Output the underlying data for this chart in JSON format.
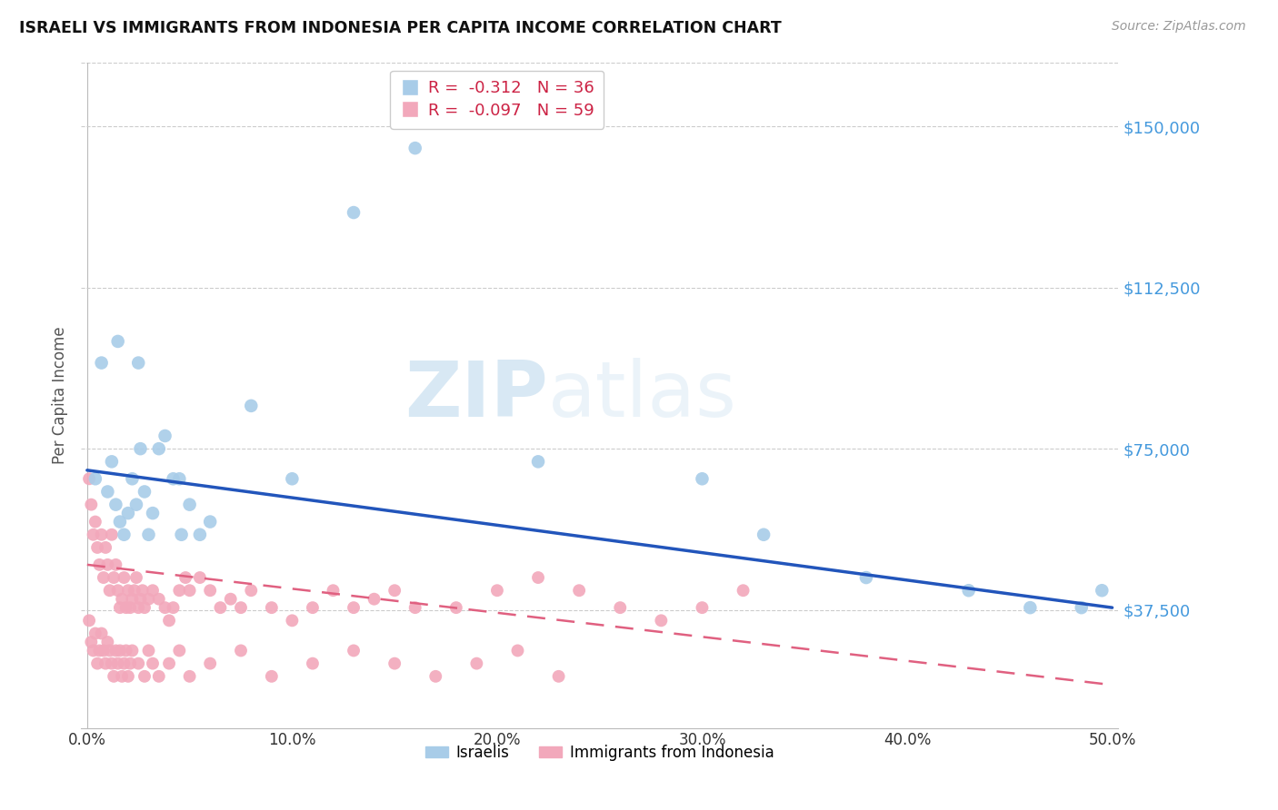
{
  "title": "ISRAELI VS IMMIGRANTS FROM INDONESIA PER CAPITA INCOME CORRELATION CHART",
  "source": "Source: ZipAtlas.com",
  "ylabel": "Per Capita Income",
  "xlabel_ticks": [
    "0.0%",
    "10.0%",
    "20.0%",
    "30.0%",
    "40.0%",
    "50.0%"
  ],
  "xlabel_vals": [
    0.0,
    0.1,
    0.2,
    0.3,
    0.4,
    0.5
  ],
  "ytick_labels": [
    "$37,500",
    "$75,000",
    "$112,500",
    "$150,000"
  ],
  "ytick_vals": [
    37500,
    75000,
    112500,
    150000
  ],
  "ylim": [
    10000,
    165000
  ],
  "xlim": [
    -0.003,
    0.503
  ],
  "legend_blue_r": "-0.312",
  "legend_blue_n": "36",
  "legend_pink_r": "-0.097",
  "legend_pink_n": "59",
  "legend_label_blue": "Israelis",
  "legend_label_pink": "Immigrants from Indonesia",
  "blue_color": "#a8cce8",
  "pink_color": "#f2a8bb",
  "line_blue_color": "#2255bb",
  "line_pink_color": "#e06080",
  "watermark_zip": "ZIP",
  "watermark_atlas": "atlas",
  "israelis_x": [
    0.004,
    0.007,
    0.01,
    0.012,
    0.014,
    0.016,
    0.018,
    0.02,
    0.022,
    0.024,
    0.026,
    0.028,
    0.03,
    0.032,
    0.035,
    0.038,
    0.042,
    0.046,
    0.05,
    0.06,
    0.08,
    0.1,
    0.13,
    0.16,
    0.22,
    0.3,
    0.33,
    0.38,
    0.43,
    0.46,
    0.485,
    0.495,
    0.015,
    0.025,
    0.045,
    0.055
  ],
  "israelis_y": [
    68000,
    95000,
    65000,
    72000,
    62000,
    58000,
    55000,
    60000,
    68000,
    62000,
    75000,
    65000,
    55000,
    60000,
    75000,
    78000,
    68000,
    55000,
    62000,
    58000,
    85000,
    68000,
    130000,
    145000,
    72000,
    68000,
    55000,
    45000,
    42000,
    38000,
    38000,
    42000,
    100000,
    95000,
    68000,
    55000
  ],
  "indonesia_x": [
    0.001,
    0.002,
    0.003,
    0.004,
    0.005,
    0.006,
    0.007,
    0.008,
    0.009,
    0.01,
    0.011,
    0.012,
    0.013,
    0.014,
    0.015,
    0.016,
    0.017,
    0.018,
    0.019,
    0.02,
    0.021,
    0.022,
    0.023,
    0.024,
    0.025,
    0.026,
    0.027,
    0.028,
    0.03,
    0.032,
    0.035,
    0.038,
    0.04,
    0.042,
    0.045,
    0.048,
    0.05,
    0.055,
    0.06,
    0.065,
    0.07,
    0.075,
    0.08,
    0.09,
    0.1,
    0.11,
    0.12,
    0.13,
    0.14,
    0.15,
    0.16,
    0.18,
    0.2,
    0.22,
    0.24,
    0.26,
    0.28,
    0.3,
    0.32
  ],
  "indonesia_y": [
    68000,
    62000,
    55000,
    58000,
    52000,
    48000,
    55000,
    45000,
    52000,
    48000,
    42000,
    55000,
    45000,
    48000,
    42000,
    38000,
    40000,
    45000,
    38000,
    42000,
    38000,
    40000,
    42000,
    45000,
    38000,
    40000,
    42000,
    38000,
    40000,
    42000,
    40000,
    38000,
    35000,
    38000,
    42000,
    45000,
    42000,
    45000,
    42000,
    38000,
    40000,
    38000,
    42000,
    38000,
    35000,
    38000,
    42000,
    38000,
    40000,
    42000,
    38000,
    38000,
    42000,
    45000,
    42000,
    38000,
    35000,
    38000,
    42000
  ],
  "indonesia_low_x": [
    0.001,
    0.002,
    0.003,
    0.004,
    0.005,
    0.006,
    0.007,
    0.008,
    0.009,
    0.01,
    0.011,
    0.012,
    0.013,
    0.014,
    0.015,
    0.016,
    0.017,
    0.018,
    0.019,
    0.02,
    0.021,
    0.022,
    0.025,
    0.028,
    0.03,
    0.032,
    0.035,
    0.04,
    0.045,
    0.05,
    0.06,
    0.075,
    0.09,
    0.11,
    0.13,
    0.15,
    0.17,
    0.19,
    0.21,
    0.23
  ],
  "indonesia_low_y": [
    35000,
    30000,
    28000,
    32000,
    25000,
    28000,
    32000,
    28000,
    25000,
    30000,
    28000,
    25000,
    22000,
    28000,
    25000,
    28000,
    22000,
    25000,
    28000,
    22000,
    25000,
    28000,
    25000,
    22000,
    28000,
    25000,
    22000,
    25000,
    28000,
    22000,
    25000,
    28000,
    22000,
    25000,
    28000,
    25000,
    22000,
    25000,
    28000,
    22000
  ]
}
